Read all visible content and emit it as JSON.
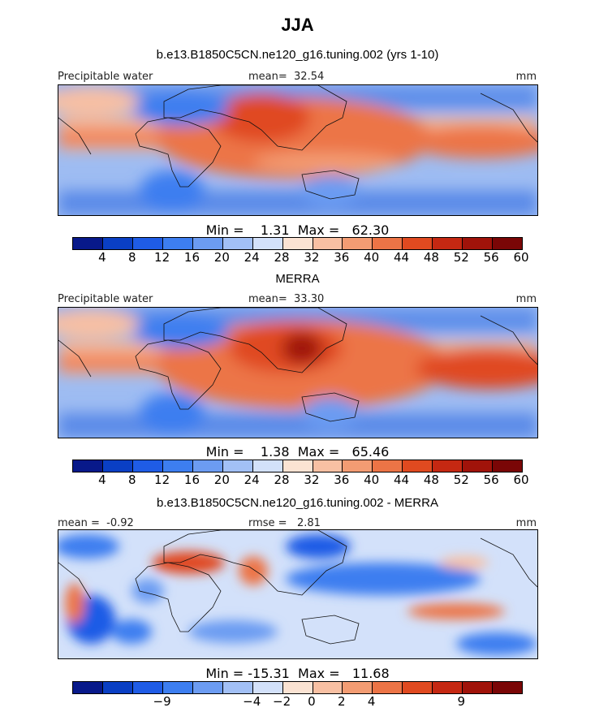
{
  "title": "JJA",
  "panel1": {
    "subtitle": "b.e13.B1850C5CN.ne120_g16.tuning.002 (yrs 1-10)",
    "left_label": "Precipitable water",
    "center_label": "mean=  32.54",
    "right_label": "mm",
    "minmax": "Min =    1.31  Max =   62.30"
  },
  "panel2": {
    "subtitle": "MERRA",
    "left_label": "Precipitable water",
    "center_label": "mean=  33.30",
    "right_label": "mm",
    "minmax": "Min =    1.38  Max =   65.46"
  },
  "panel3": {
    "subtitle": "b.e13.B1850C5CN.ne120_g16.tuning.002 - MERRA",
    "left_label": "mean =  -0.92",
    "center_label": "rmse =   2.81",
    "right_label": "mm",
    "minmax": "Min = -15.31  Max =   11.68"
  },
  "colorbar_colors": [
    "#08198a",
    "#0a3fc4",
    "#1f5ce6",
    "#3d7ef0",
    "#6c9cf2",
    "#a2c0f6",
    "#d3e1fa",
    "#fbe3d3",
    "#f8c0a3",
    "#f39c73",
    "#ec7446",
    "#e04a20",
    "#c52812",
    "#a0130a",
    "#7a0606"
  ],
  "colorbar1_ticks": [
    "4",
    "8",
    "12",
    "16",
    "20",
    "24",
    "28",
    "32",
    "36",
    "40",
    "44",
    "48",
    "52",
    "56",
    "60"
  ],
  "colorbar2_ticks": [
    "4",
    "8",
    "12",
    "16",
    "20",
    "24",
    "28",
    "32",
    "36",
    "40",
    "44",
    "48",
    "52",
    "56",
    "60"
  ],
  "colorbar3_ticks": [
    "−9",
    "−4",
    "−2",
    "0",
    "2",
    "4",
    "9"
  ]
}
